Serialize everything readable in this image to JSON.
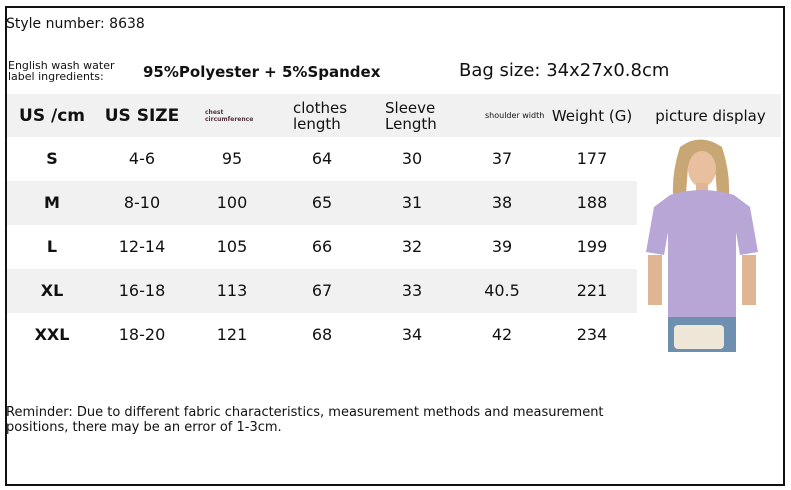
{
  "style_number": "Style number: 8638",
  "wash_label": "English wash water label ingredients:",
  "material": "95%Polyester + 5%Spandex",
  "bag_size": "Bag size: 34x27x0.8cm",
  "headers": [
    "US /cm",
    "US SIZE",
    "chest circumference",
    "clothes length",
    "Sleeve Length",
    "shoulder width",
    "Weight (G)",
    "picture display"
  ],
  "rows": [
    [
      "S",
      "4-6",
      "95",
      "64",
      "30",
      "37",
      "177"
    ],
    [
      "M",
      "8-10",
      "100",
      "65",
      "31",
      "38",
      "188"
    ],
    [
      "L",
      "12-14",
      "105",
      "66",
      "32",
      "39",
      "199"
    ],
    [
      "XL",
      "16-18",
      "113",
      "67",
      "33",
      "40.5",
      "221"
    ],
    [
      "XXL",
      "18-20",
      "121",
      "68",
      "34",
      "42",
      "234"
    ]
  ],
  "reminder": "Reminder: Due to different fabric characteristics, measurement methods and measurement positions, there may be an error of 1-3cm.",
  "colors": {
    "row_stripe": "#f1f1f1",
    "shirt": "#b7a6d6"
  }
}
